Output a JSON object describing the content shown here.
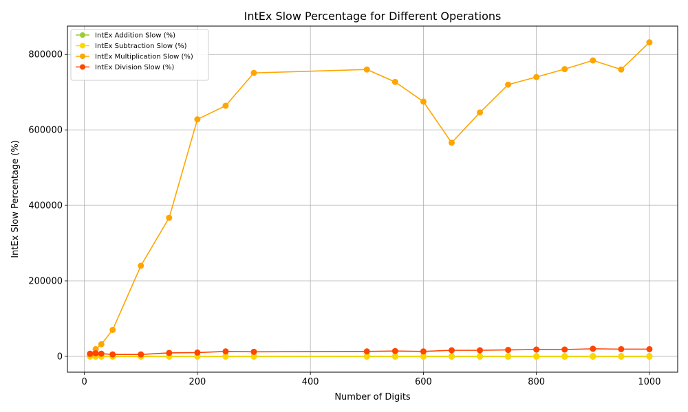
{
  "chart_data": {
    "type": "line",
    "title": "IntEx Slow Percentage for Different Operations",
    "xlabel": "Number of Digits",
    "ylabel": "IntEx Slow Percentage (%)",
    "x": [
      10,
      20,
      30,
      50,
      100,
      150,
      200,
      250,
      300,
      500,
      550,
      600,
      650,
      700,
      750,
      800,
      850,
      900,
      950,
      1000
    ],
    "xlim": [
      -30,
      1050
    ],
    "ylim": [
      -42000,
      875000
    ],
    "xticks": [
      0,
      200,
      400,
      600,
      800,
      1000
    ],
    "yticks": [
      0,
      200000,
      400000,
      600000,
      800000
    ],
    "grid": true,
    "legend_position": "top-left",
    "series": [
      {
        "name": "IntEx Addition Slow (%)",
        "color": "#9acd32",
        "values": [
          300,
          300,
          300,
          300,
          300,
          300,
          300,
          300,
          300,
          300,
          300,
          300,
          300,
          300,
          300,
          300,
          300,
          300,
          300,
          300
        ]
      },
      {
        "name": "IntEx Subtraction Slow (%)",
        "color": "#ffd700",
        "values": [
          -1000,
          -1000,
          -1000,
          -1000,
          -1000,
          -1000,
          -1000,
          -1000,
          -1000,
          -1000,
          -1000,
          -1000,
          -1000,
          -1000,
          -1000,
          -1000,
          -1000,
          -1000,
          -1000,
          -1000
        ]
      },
      {
        "name": "IntEx Multiplication Slow (%)",
        "color": "#ffa500",
        "values": [
          5000,
          19000,
          32000,
          70000,
          240000,
          367000,
          628000,
          664000,
          751000,
          760000,
          727000,
          675000,
          566000,
          646000,
          720000,
          740000,
          761000,
          784000,
          760000,
          832000
        ]
      },
      {
        "name": "IntEx Division Slow (%)",
        "color": "#ff4500",
        "values": [
          7000,
          8000,
          7000,
          5000,
          5000,
          9000,
          10000,
          13000,
          12000,
          13000,
          14000,
          13000,
          16000,
          16000,
          17000,
          18000,
          18000,
          20000,
          19000,
          19000
        ]
      }
    ]
  }
}
